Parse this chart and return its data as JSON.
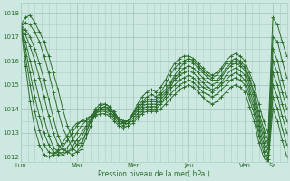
{
  "bg_color": "#cce8e0",
  "grid_color": "#aaccc4",
  "line_color": "#2d6e2d",
  "marker_color": "#2d6e2d",
  "ylabel_ticks": [
    1012,
    1013,
    1014,
    1015,
    1016,
    1017,
    1018
  ],
  "ylim": [
    1011.8,
    1018.4
  ],
  "xlabel": "Pression niveau de la mer( hPa )",
  "day_labels": [
    "Lun",
    "Mar",
    "Mer",
    "Jeu",
    "Ven",
    "Sa"
  ],
  "day_positions": [
    0,
    48,
    96,
    144,
    192,
    216
  ],
  "xlim": [
    0,
    228
  ],
  "series": [
    {
      "x": [
        0,
        4,
        8,
        12,
        16,
        20,
        24,
        28,
        32,
        36,
        40,
        44,
        48,
        52,
        56,
        60,
        64,
        68,
        72,
        76,
        80,
        84,
        88,
        92,
        96,
        100,
        104,
        108,
        112,
        116,
        120,
        124,
        128,
        132,
        136,
        140,
        144,
        148,
        152,
        156,
        160,
        164,
        168,
        172,
        176,
        180,
        184,
        188,
        192,
        196,
        200,
        204,
        208,
        212,
        216,
        220,
        224,
        228
      ],
      "y": [
        1017.5,
        1017.8,
        1017.9,
        1017.6,
        1017.2,
        1016.8,
        1016.2,
        1015.5,
        1014.8,
        1014.0,
        1013.3,
        1012.8,
        1012.5,
        1012.6,
        1013.0,
        1013.5,
        1014.0,
        1014.2,
        1014.2,
        1014.1,
        1013.8,
        1013.6,
        1013.4,
        1013.5,
        1013.8,
        1014.2,
        1014.5,
        1014.7,
        1014.8,
        1014.7,
        1014.9,
        1015.2,
        1015.6,
        1015.9,
        1016.1,
        1016.2,
        1016.2,
        1016.1,
        1015.9,
        1015.7,
        1015.5,
        1015.4,
        1015.5,
        1015.7,
        1016.0,
        1016.2,
        1016.3,
        1016.2,
        1016.0,
        1015.5,
        1015.0,
        1014.2,
        1013.5,
        1013.0,
        1017.8,
        1017.5,
        1016.8,
        1016.2
      ]
    },
    {
      "x": [
        0,
        4,
        8,
        12,
        16,
        20,
        24,
        28,
        32,
        36,
        40,
        44,
        48,
        52,
        56,
        60,
        64,
        68,
        72,
        76,
        80,
        84,
        88,
        92,
        96,
        100,
        104,
        108,
        112,
        116,
        120,
        124,
        128,
        132,
        136,
        140,
        144,
        148,
        152,
        156,
        160,
        164,
        168,
        172,
        176,
        180,
        184,
        188,
        192,
        196,
        200,
        204,
        208,
        212,
        216,
        220,
        224,
        228
      ],
      "y": [
        1017.5,
        1017.6,
        1017.5,
        1017.2,
        1016.8,
        1016.2,
        1015.5,
        1014.7,
        1013.9,
        1013.2,
        1012.8,
        1012.4,
        1012.2,
        1012.3,
        1012.8,
        1013.3,
        1013.8,
        1014.0,
        1014.1,
        1014.0,
        1013.8,
        1013.5,
        1013.4,
        1013.5,
        1013.8,
        1014.1,
        1014.3,
        1014.5,
        1014.6,
        1014.5,
        1014.7,
        1015.0,
        1015.4,
        1015.7,
        1015.9,
        1016.0,
        1016.1,
        1016.0,
        1015.8,
        1015.6,
        1015.4,
        1015.3,
        1015.4,
        1015.6,
        1015.9,
        1016.0,
        1016.1,
        1016.0,
        1015.8,
        1015.3,
        1014.7,
        1013.9,
        1013.2,
        1012.7,
        1017.0,
        1016.8,
        1016.0,
        1015.3
      ]
    },
    {
      "x": [
        0,
        4,
        8,
        12,
        16,
        20,
        24,
        28,
        32,
        36,
        40,
        44,
        48,
        52,
        56,
        60,
        64,
        68,
        72,
        76,
        80,
        84,
        88,
        92,
        96,
        100,
        104,
        108,
        112,
        116,
        120,
        124,
        128,
        132,
        136,
        140,
        144,
        148,
        152,
        156,
        160,
        164,
        168,
        172,
        176,
        180,
        184,
        188,
        192,
        196,
        200,
        204,
        208,
        212,
        216,
        220,
        224,
        228
      ],
      "y": [
        1017.5,
        1017.3,
        1017.0,
        1016.5,
        1015.9,
        1015.2,
        1014.4,
        1013.6,
        1012.9,
        1012.4,
        1012.2,
        1012.1,
        1012.2,
        1012.5,
        1013.0,
        1013.5,
        1013.9,
        1014.1,
        1014.2,
        1014.1,
        1013.9,
        1013.6,
        1013.5,
        1013.5,
        1013.8,
        1014.0,
        1014.2,
        1014.4,
        1014.4,
        1014.4,
        1014.6,
        1014.8,
        1015.1,
        1015.4,
        1015.7,
        1015.9,
        1016.0,
        1015.9,
        1015.7,
        1015.5,
        1015.3,
        1015.2,
        1015.2,
        1015.4,
        1015.7,
        1015.9,
        1016.0,
        1015.9,
        1015.7,
        1015.2,
        1014.6,
        1013.7,
        1013.0,
        1012.5,
        1016.5,
        1016.0,
        1015.2,
        1014.5
      ]
    },
    {
      "x": [
        0,
        4,
        8,
        12,
        16,
        20,
        24,
        28,
        32,
        36,
        40,
        44,
        48,
        52,
        56,
        60,
        64,
        68,
        72,
        76,
        80,
        84,
        88,
        92,
        96,
        100,
        104,
        108,
        112,
        116,
        120,
        124,
        128,
        132,
        136,
        140,
        144,
        148,
        152,
        156,
        160,
        164,
        168,
        172,
        176,
        180,
        184,
        188,
        192,
        196,
        200,
        204,
        208,
        212,
        216,
        220,
        224,
        228
      ],
      "y": [
        1017.5,
        1017.1,
        1016.6,
        1016.0,
        1015.3,
        1014.5,
        1013.7,
        1013.0,
        1012.5,
        1012.3,
        1012.2,
        1012.3,
        1012.5,
        1012.8,
        1013.2,
        1013.5,
        1013.8,
        1014.0,
        1014.1,
        1014.0,
        1013.8,
        1013.6,
        1013.5,
        1013.5,
        1013.7,
        1014.0,
        1014.2,
        1014.3,
        1014.3,
        1014.3,
        1014.5,
        1014.7,
        1015.0,
        1015.3,
        1015.5,
        1015.7,
        1015.8,
        1015.7,
        1015.5,
        1015.3,
        1015.1,
        1015.0,
        1015.1,
        1015.3,
        1015.6,
        1015.8,
        1015.9,
        1015.8,
        1015.6,
        1015.0,
        1014.4,
        1013.5,
        1012.8,
        1012.3,
        1016.0,
        1015.5,
        1014.7,
        1014.0
      ]
    },
    {
      "x": [
        0,
        4,
        8,
        12,
        16,
        20,
        24,
        28,
        32,
        36,
        40,
        44,
        48,
        52,
        56,
        60,
        64,
        68,
        72,
        76,
        80,
        84,
        88,
        92,
        96,
        100,
        104,
        108,
        112,
        116,
        120,
        124,
        128,
        132,
        136,
        140,
        144,
        148,
        152,
        156,
        160,
        164,
        168,
        172,
        176,
        180,
        184,
        188,
        192,
        196,
        200,
        204,
        208,
        212,
        216,
        220,
        224,
        228
      ],
      "y": [
        1017.5,
        1016.8,
        1016.0,
        1015.2,
        1014.4,
        1013.6,
        1012.9,
        1012.4,
        1012.2,
        1012.1,
        1012.2,
        1012.4,
        1012.7,
        1013.0,
        1013.3,
        1013.6,
        1013.8,
        1014.0,
        1014.0,
        1013.9,
        1013.7,
        1013.5,
        1013.4,
        1013.5,
        1013.7,
        1013.9,
        1014.1,
        1014.2,
        1014.2,
        1014.2,
        1014.4,
        1014.6,
        1014.9,
        1015.2,
        1015.4,
        1015.5,
        1015.6,
        1015.5,
        1015.3,
        1015.1,
        1014.9,
        1014.8,
        1014.9,
        1015.1,
        1015.4,
        1015.6,
        1015.7,
        1015.6,
        1015.4,
        1014.8,
        1014.2,
        1013.3,
        1012.6,
        1012.1,
        1015.5,
        1015.0,
        1014.2,
        1013.5
      ]
    },
    {
      "x": [
        0,
        4,
        8,
        12,
        16,
        20,
        24,
        28,
        32,
        36,
        40,
        44,
        48,
        52,
        56,
        60,
        64,
        68,
        72,
        76,
        80,
        84,
        88,
        92,
        96,
        100,
        104,
        108,
        112,
        116,
        120,
        124,
        128,
        132,
        136,
        140,
        144,
        148,
        152,
        156,
        160,
        164,
        168,
        172,
        176,
        180,
        184,
        188,
        192,
        196,
        200,
        204,
        208,
        212,
        216,
        220,
        224,
        228
      ],
      "y": [
        1017.5,
        1016.5,
        1015.5,
        1014.5,
        1013.7,
        1013.0,
        1012.5,
        1012.2,
        1012.1,
        1012.2,
        1012.4,
        1012.7,
        1013.0,
        1013.3,
        1013.5,
        1013.7,
        1013.9,
        1014.0,
        1014.0,
        1013.9,
        1013.7,
        1013.5,
        1013.4,
        1013.4,
        1013.6,
        1013.8,
        1014.0,
        1014.1,
        1014.1,
        1014.1,
        1014.3,
        1014.5,
        1014.8,
        1015.0,
        1015.2,
        1015.3,
        1015.4,
        1015.3,
        1015.1,
        1014.9,
        1014.8,
        1014.7,
        1014.8,
        1015.0,
        1015.2,
        1015.4,
        1015.5,
        1015.4,
        1015.2,
        1014.6,
        1014.0,
        1013.1,
        1012.4,
        1011.9,
        1015.0,
        1014.5,
        1013.7,
        1013.0
      ]
    },
    {
      "x": [
        0,
        4,
        8,
        12,
        16,
        20,
        24,
        28,
        32,
        36,
        40,
        44,
        48,
        52,
        56,
        60,
        64,
        68,
        72,
        76,
        80,
        84,
        88,
        92,
        96,
        100,
        104,
        108,
        112,
        116,
        120,
        124,
        128,
        132,
        136,
        140,
        144,
        148,
        152,
        156,
        160,
        164,
        168,
        172,
        176,
        180,
        184,
        188,
        192,
        196,
        200,
        204,
        208,
        212,
        216,
        220,
        224,
        228
      ],
      "y": [
        1017.5,
        1016.2,
        1015.0,
        1013.9,
        1013.1,
        1012.5,
        1012.2,
        1012.1,
        1012.2,
        1012.4,
        1012.7,
        1013.0,
        1013.3,
        1013.5,
        1013.6,
        1013.7,
        1013.8,
        1013.9,
        1013.9,
        1013.8,
        1013.6,
        1013.4,
        1013.3,
        1013.4,
        1013.5,
        1013.7,
        1013.9,
        1014.0,
        1014.0,
        1014.0,
        1014.2,
        1014.4,
        1014.6,
        1014.8,
        1015.0,
        1015.1,
        1015.2,
        1015.1,
        1014.9,
        1014.7,
        1014.6,
        1014.5,
        1014.6,
        1014.8,
        1015.0,
        1015.2,
        1015.3,
        1015.2,
        1015.0,
        1014.4,
        1013.8,
        1012.9,
        1012.2,
        1011.8,
        1014.5,
        1014.0,
        1013.2,
        1012.5
      ]
    },
    {
      "x": [
        0,
        4,
        8,
        12,
        16,
        20,
        24,
        28,
        32,
        36,
        40,
        44,
        48,
        52,
        56,
        60,
        64,
        68,
        72,
        76,
        80,
        84,
        88,
        92,
        96,
        100,
        104,
        108,
        112,
        116,
        120,
        124,
        128,
        132,
        136,
        140,
        144,
        148,
        152,
        156,
        160,
        164,
        168,
        172,
        176,
        180,
        184,
        188,
        192,
        196,
        200,
        204,
        208,
        212,
        216,
        220,
        224,
        228
      ],
      "y": [
        1017.5,
        1015.8,
        1014.3,
        1013.2,
        1012.5,
        1012.1,
        1012.0,
        1012.1,
        1012.3,
        1012.6,
        1012.9,
        1013.2,
        1013.4,
        1013.5,
        1013.5,
        1013.6,
        1013.7,
        1013.8,
        1013.8,
        1013.7,
        1013.5,
        1013.3,
        1013.2,
        1013.3,
        1013.4,
        1013.6,
        1013.8,
        1013.9,
        1013.9,
        1013.9,
        1014.0,
        1014.2,
        1014.4,
        1014.6,
        1014.8,
        1014.9,
        1015.0,
        1014.9,
        1014.7,
        1014.5,
        1014.3,
        1014.2,
        1014.3,
        1014.5,
        1014.7,
        1014.9,
        1015.0,
        1014.9,
        1014.7,
        1014.1,
        1013.5,
        1012.6,
        1012.0,
        1011.7,
        1014.0,
        1013.5,
        1012.7,
        1012.0
      ]
    }
  ]
}
